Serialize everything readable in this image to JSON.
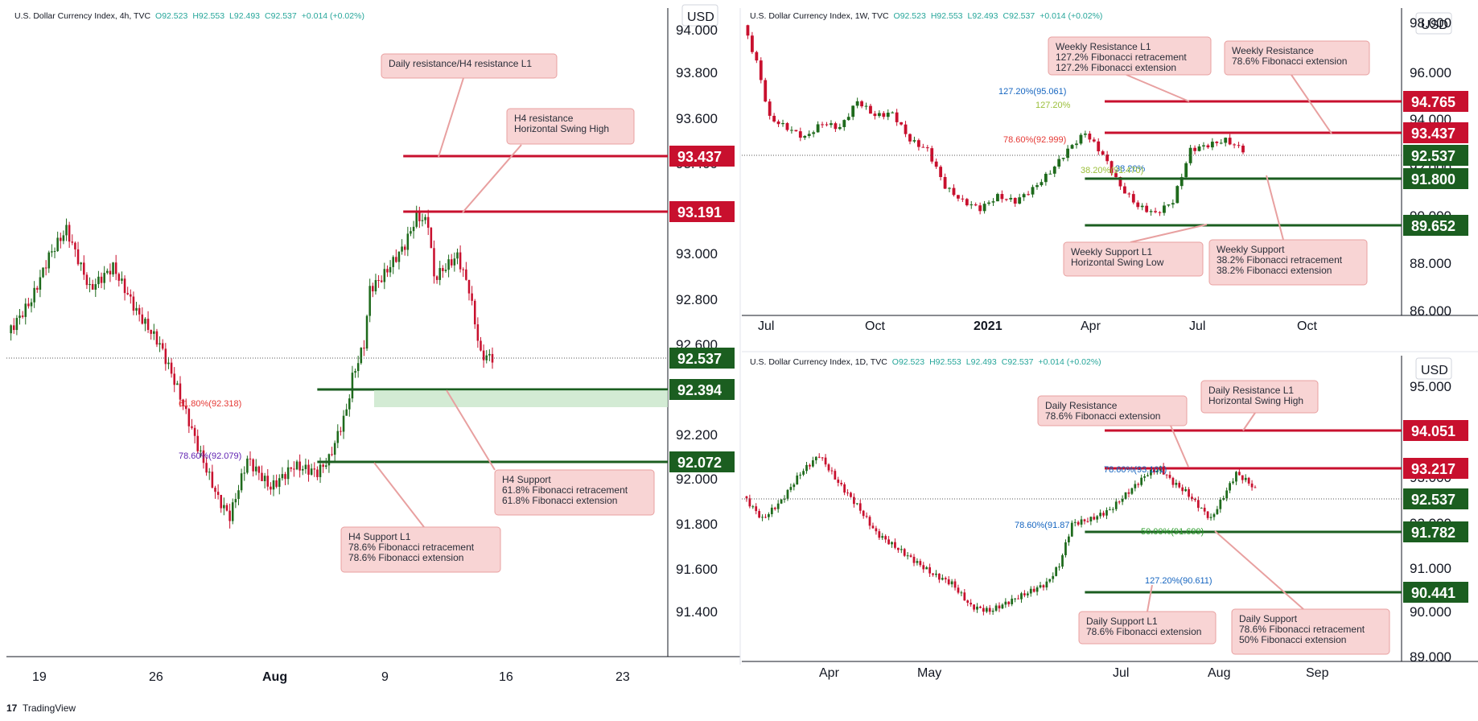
{
  "branding": "TradingView",
  "colors": {
    "up": "#1e6a1c",
    "down": "#c8102e",
    "resistance": "#c8102e",
    "support": "#1b5e20",
    "callout_bg": "#f8d4d4",
    "callout_border": "#e8a0a0"
  },
  "panels": [
    {
      "id": "h4",
      "header": {
        "title": "U.S. Dollar Currency Index, 4h, TVC",
        "o": "O92.523",
        "h": "H92.553",
        "l": "L92.493",
        "c": "C92.537",
        "chg": "+0.014 (+0.02%)"
      },
      "currency": "USD",
      "y_ticks": [
        "94.000",
        "93.800",
        "93.600",
        "93.400",
        "93.200",
        "93.000",
        "92.800",
        "92.600",
        "92.400",
        "92.200",
        "92.000",
        "91.800",
        "91.600",
        "91.400"
      ],
      "x_ticks": [
        {
          "label": "19",
          "bold": false
        },
        {
          "label": "26",
          "bold": false
        },
        {
          "label": "Aug",
          "bold": true
        },
        {
          "label": "9",
          "bold": false
        },
        {
          "label": "16",
          "bold": false
        },
        {
          "label": "23",
          "bold": false
        }
      ],
      "tags": [
        {
          "text": "93.437",
          "kind": "resistance"
        },
        {
          "text": "93.191",
          "kind": "resistance"
        },
        {
          "text": "92.537",
          "kind": "support"
        },
        {
          "text": "92.394",
          "kind": "support"
        },
        {
          "text": "92.072",
          "kind": "support"
        }
      ],
      "callouts": [
        {
          "lines": [
            "Daily resistance/H4 resistance L1"
          ]
        },
        {
          "lines": [
            "H4 resistance",
            "Horizontal Swing High"
          ]
        },
        {
          "lines": [
            "H4 Support",
            "61.8% Fibonacci retracement",
            "61.8% Fibonacci extension"
          ]
        },
        {
          "lines": [
            "H4 Support L1",
            "78.6% Fibonacci retracement",
            "78.6% Fibonacci extension"
          ]
        }
      ],
      "fib_labels": [
        "61.80%(92.318)",
        "78.60%(92.079)"
      ]
    },
    {
      "id": "weekly",
      "header": {
        "title": "U.S. Dollar Currency Index, 1W, TVC",
        "o": "O92.523",
        "h": "H92.553",
        "l": "L92.493",
        "c": "C92.537",
        "chg": "+0.014 (+0.02%)"
      },
      "currency": "USD",
      "y_ticks": [
        "98.000",
        "96.000",
        "94.000",
        "92.000",
        "90.000",
        "88.000",
        "86.000"
      ],
      "x_ticks": [
        {
          "label": "Jul",
          "bold": false
        },
        {
          "label": "Oct",
          "bold": false
        },
        {
          "label": "2021",
          "bold": true
        },
        {
          "label": "Apr",
          "bold": false
        },
        {
          "label": "Jul",
          "bold": false
        },
        {
          "label": "Oct",
          "bold": false
        }
      ],
      "tags": [
        {
          "text": "94.765",
          "kind": "resistance"
        },
        {
          "text": "93.437",
          "kind": "resistance"
        },
        {
          "text": "92.537",
          "kind": "support"
        },
        {
          "text": "91.800",
          "kind": "support"
        },
        {
          "text": "89.652",
          "kind": "support"
        }
      ],
      "callouts": [
        {
          "lines": [
            "Weekly Resistance L1",
            "127.2% Fibonacci retracement",
            "127.2% Fibonacci extension"
          ]
        },
        {
          "lines": [
            "Weekly Resistance",
            "78.6% Fibonacci extension"
          ]
        },
        {
          "lines": [
            "Weekly Support L1",
            "Horizontal Swing Low"
          ]
        },
        {
          "lines": [
            "Weekly Support",
            "38.2% Fibonacci retracement",
            "38.2% Fibonacci extension"
          ]
        }
      ],
      "fib_labels": [
        "127.20%(95.061)",
        "127.20%",
        "78.60%(92.999)",
        "38.20%",
        "38.20%(91.470)"
      ]
    },
    {
      "id": "daily",
      "header": {
        "title": "U.S. Dollar Currency Index, 1D, TVC",
        "o": "O92.523",
        "h": "H92.553",
        "l": "L92.493",
        "c": "C92.537",
        "chg": "+0.014 (+0.02%)"
      },
      "currency": "USD",
      "y_ticks": [
        "95.000",
        "94.000",
        "93.000",
        "92.000",
        "91.000",
        "90.000",
        "89.000"
      ],
      "x_ticks": [
        {
          "label": "Apr",
          "bold": false
        },
        {
          "label": "May",
          "bold": false
        },
        {
          "label": "Jul",
          "bold": false
        },
        {
          "label": "Aug",
          "bold": false
        },
        {
          "label": "Sep",
          "bold": false
        }
      ],
      "tags": [
        {
          "text": "94.051",
          "kind": "resistance"
        },
        {
          "text": "93.217",
          "kind": "resistance"
        },
        {
          "text": "92.537",
          "kind": "support"
        },
        {
          "text": "91.782",
          "kind": "support"
        },
        {
          "text": "90.441",
          "kind": "support"
        }
      ],
      "callouts": [
        {
          "lines": [
            "Daily Resistance",
            "78.6% Fibonacci extension"
          ]
        },
        {
          "lines": [
            "Daily Resistance L1",
            "Horizontal Swing High"
          ]
        },
        {
          "lines": [
            "Daily Support L1",
            "78.6% Fibonacci extension"
          ]
        },
        {
          "lines": [
            "Daily Support",
            "78.6% Fibonacci retracement",
            "50% Fibonacci extension"
          ]
        }
      ],
      "fib_labels": [
        "78.60%(93.101)",
        "78.60%(91.87",
        "50.00%(91.699)",
        "127.20%(90.611)"
      ]
    }
  ],
  "chart_data": [
    {
      "type": "candlestick",
      "title": "U.S. Dollar Currency Index, 4h, TVC",
      "ylim": [
        91.2,
        94.05
      ],
      "close_path": [
        [
          0,
          92.65
        ],
        [
          8,
          92.8
        ],
        [
          14,
          93.0
        ],
        [
          20,
          93.12
        ],
        [
          28,
          92.85
        ],
        [
          36,
          92.95
        ],
        [
          44,
          92.75
        ],
        [
          52,
          92.6
        ],
        [
          58,
          92.4
        ],
        [
          66,
          92.1
        ],
        [
          72,
          91.9
        ],
        [
          76,
          91.82
        ],
        [
          82,
          92.08
        ],
        [
          90,
          91.95
        ],
        [
          98,
          92.05
        ],
        [
          106,
          92.02
        ],
        [
          110,
          92.08
        ],
        [
          116,
          92.3
        ],
        [
          118,
          92.45
        ],
        [
          122,
          92.6
        ],
        [
          124,
          92.85
        ],
        [
          128,
          92.9
        ],
        [
          136,
          93.05
        ],
        [
          140,
          93.18
        ],
        [
          144,
          93.15
        ],
        [
          146,
          92.9
        ],
        [
          150,
          92.95
        ],
        [
          154,
          93.0
        ],
        [
          158,
          92.85
        ],
        [
          162,
          92.55
        ],
        [
          166,
          92.54
        ]
      ],
      "levels": {
        "resistance": [
          93.437,
          93.191
        ],
        "support": [
          92.394,
          92.072
        ],
        "last": 92.537
      },
      "fibonacci": [
        {
          "label": "61.80%(92.318)",
          "value": 92.318
        },
        {
          "label": "78.60%(92.079)",
          "value": 92.079
        }
      ]
    },
    {
      "type": "candlestick",
      "title": "U.S. Dollar Currency Index, 1W, TVC",
      "ylim": [
        85.8,
        98.3
      ],
      "close_path": [
        [
          0,
          97.6
        ],
        [
          3,
          96.1
        ],
        [
          6,
          93.8
        ],
        [
          10,
          93.4
        ],
        [
          14,
          93.0
        ],
        [
          18,
          93.6
        ],
        [
          22,
          93.4
        ],
        [
          26,
          94.5
        ],
        [
          30,
          93.9
        ],
        [
          34,
          94.0
        ],
        [
          38,
          92.9
        ],
        [
          42,
          92.5
        ],
        [
          46,
          91.0
        ],
        [
          50,
          90.4
        ],
        [
          54,
          90.1
        ],
        [
          58,
          90.6
        ],
        [
          62,
          90.4
        ],
        [
          66,
          90.9
        ],
        [
          70,
          91.6
        ],
        [
          74,
          92.5
        ],
        [
          78,
          93.2
        ],
        [
          82,
          92.3
        ],
        [
          86,
          91.0
        ],
        [
          90,
          90.2
        ],
        [
          94,
          89.9
        ],
        [
          98,
          90.4
        ],
        [
          102,
          92.5
        ],
        [
          106,
          92.7
        ],
        [
          110,
          92.9
        ],
        [
          114,
          92.5
        ]
      ],
      "levels": {
        "resistance": [
          94.765,
          93.437
        ],
        "support": [
          91.8,
          89.652
        ],
        "last": 92.537
      },
      "fibonacci": [
        {
          "label": "127.20%(95.061)",
          "value": 95.061
        },
        {
          "label": "78.60%(92.999)",
          "value": 92.999
        },
        {
          "label": "38.20%(91.470)",
          "value": 91.47
        }
      ]
    },
    {
      "type": "candlestick",
      "title": "U.S. Dollar Currency Index, 1D, TVC",
      "ylim": [
        88.8,
        95.5
      ],
      "close_path": [
        [
          0,
          92.4
        ],
        [
          6,
          91.9
        ],
        [
          12,
          92.3
        ],
        [
          18,
          92.9
        ],
        [
          24,
          93.3
        ],
        [
          30,
          92.7
        ],
        [
          36,
          92.2
        ],
        [
          42,
          91.6
        ],
        [
          48,
          91.3
        ],
        [
          54,
          91.0
        ],
        [
          60,
          90.7
        ],
        [
          66,
          90.5
        ],
        [
          72,
          90.0
        ],
        [
          78,
          89.9
        ],
        [
          84,
          90.1
        ],
        [
          90,
          90.3
        ],
        [
          96,
          90.5
        ],
        [
          100,
          90.9
        ],
        [
          104,
          91.8
        ],
        [
          110,
          91.9
        ],
        [
          116,
          92.1
        ],
        [
          122,
          92.5
        ],
        [
          128,
          92.9
        ],
        [
          132,
          93.0
        ],
        [
          136,
          92.7
        ],
        [
          140,
          92.5
        ],
        [
          144,
          92.2
        ],
        [
          148,
          91.9
        ],
        [
          152,
          92.4
        ],
        [
          156,
          92.9
        ],
        [
          160,
          92.7
        ],
        [
          162,
          92.537
        ]
      ],
      "levels": {
        "resistance": [
          94.051,
          93.217
        ],
        "support": [
          91.782,
          90.441
        ],
        "last": 92.537
      },
      "fibonacci": [
        {
          "label": "78.60%(93.101)",
          "value": 93.101
        },
        {
          "label": "78.60%(91.87",
          "value": 91.87
        },
        {
          "label": "50.00%(91.699)",
          "value": 91.699
        },
        {
          "label": "127.20%(90.611)",
          "value": 90.611
        }
      ]
    }
  ]
}
